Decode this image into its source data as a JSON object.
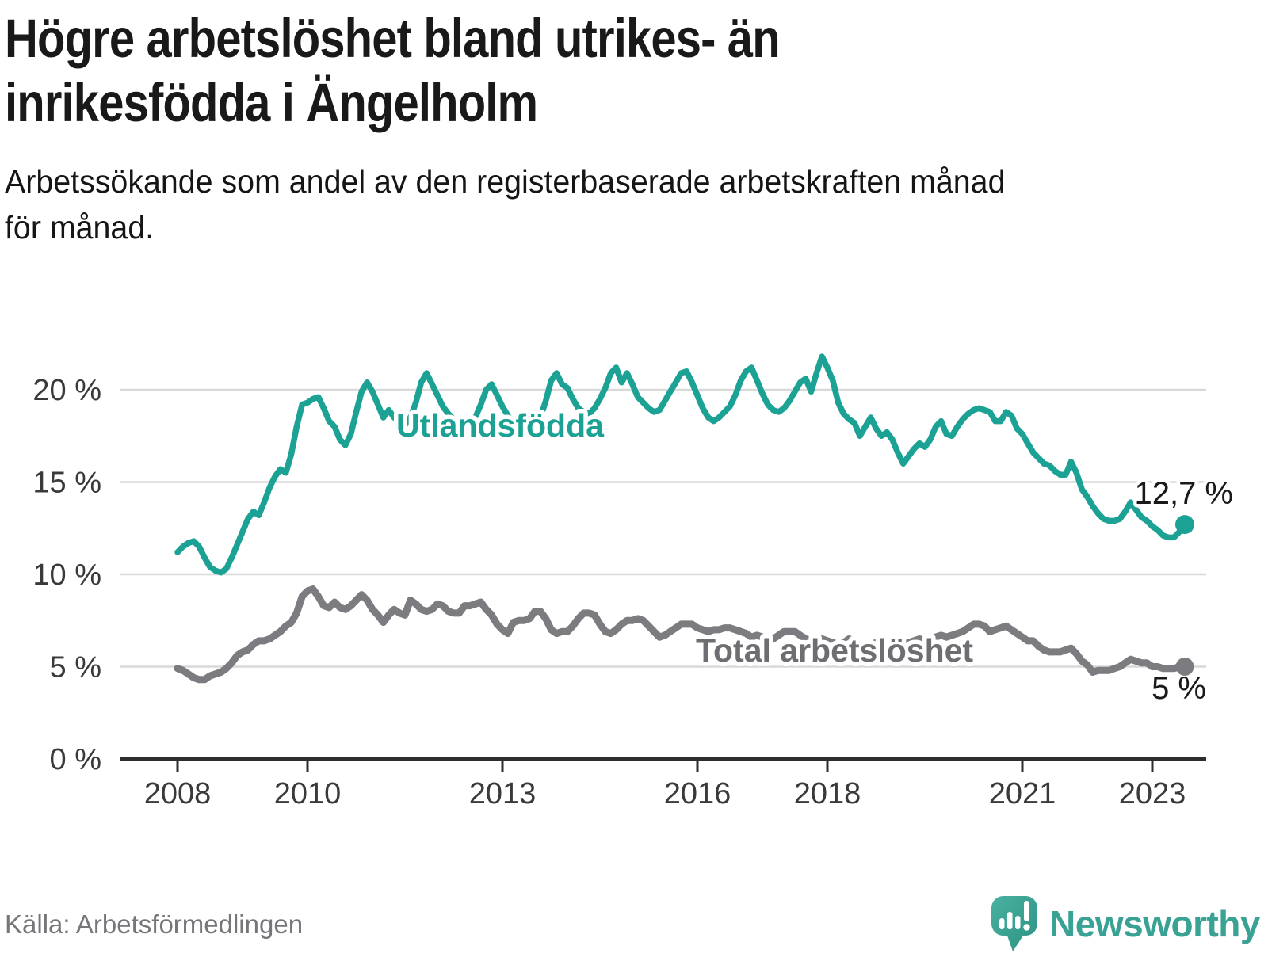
{
  "header": {
    "title_line1": "Högre arbetslöshet bland utrikes- än",
    "title_line2": "inrikesfödda i Ängelholm",
    "subtitle_line1": "Arbetssökande som andel av den registerbaserade arbetskraften månad",
    "subtitle_line2": "för månad."
  },
  "footer": {
    "source": "Källa: Arbetsförmedlingen",
    "brand": "Newsworthy"
  },
  "colors": {
    "accent_teal": "#1ca295",
    "line_gray": "#7b7b80",
    "grid": "#d9d9d9",
    "axis": "#2d2d2d",
    "brand_teal": "#39a294"
  },
  "chart_data": {
    "type": "line",
    "title": "Högre arbetslöshet bland utrikes- än inrikesfödda i Ängelholm",
    "subtitle": "Arbetssökande som andel av den registerbaserade arbetskraften månad för månad.",
    "x_unit": "month",
    "x_start": "2008-01",
    "x_end": "2023-07",
    "ylim": [
      0,
      22.5
    ],
    "grid": true,
    "legend_position": "inline-labels",
    "y_axis": {
      "ticks": [
        {
          "label": "0 %",
          "value": 0
        },
        {
          "label": "5 %",
          "value": 5
        },
        {
          "label": "10 %",
          "value": 10
        },
        {
          "label": "15 %",
          "value": 15
        },
        {
          "label": "20 %",
          "value": 20
        }
      ]
    },
    "x_axis": {
      "ticks": [
        {
          "label": "2008",
          "year": 2008
        },
        {
          "label": "2010",
          "year": 2010
        },
        {
          "label": "2013",
          "year": 2013
        },
        {
          "label": "2016",
          "year": 2016
        },
        {
          "label": "2018",
          "year": 2018
        },
        {
          "label": "2021",
          "year": 2021
        },
        {
          "label": "2023",
          "year": 2023
        }
      ]
    },
    "series": [
      {
        "id": "total",
        "name": "Total arbetslöshet",
        "color": "#7b7b80",
        "label_color": "#6d6d72",
        "last_value_label": "5 %",
        "values": [
          4.9,
          4.8,
          4.6,
          4.4,
          4.3,
          4.3,
          4.5,
          4.6,
          4.7,
          4.9,
          5.2,
          5.6,
          5.8,
          5.9,
          6.2,
          6.4,
          6.4,
          6.5,
          6.7,
          6.9,
          7.2,
          7.4,
          7.9,
          8.8,
          9.1,
          9.2,
          8.8,
          8.3,
          8.2,
          8.5,
          8.2,
          8.1,
          8.3,
          8.6,
          8.9,
          8.6,
          8.1,
          7.8,
          7.4,
          7.8,
          8.1,
          7.9,
          7.8,
          8.6,
          8.4,
          8.1,
          8.0,
          8.1,
          8.4,
          8.3,
          8.0,
          7.9,
          7.9,
          8.3,
          8.3,
          8.4,
          8.5,
          8.1,
          7.8,
          7.3,
          7.0,
          6.8,
          7.4,
          7.5,
          7.5,
          7.6,
          8.0,
          8.0,
          7.6,
          7.0,
          6.8,
          6.9,
          6.9,
          7.2,
          7.6,
          7.9,
          7.9,
          7.8,
          7.3,
          6.9,
          6.8,
          7.0,
          7.3,
          7.5,
          7.5,
          7.6,
          7.5,
          7.2,
          6.9,
          6.6,
          6.7,
          6.9,
          7.1,
          7.3,
          7.3,
          7.3,
          7.1,
          7.0,
          6.9,
          7.0,
          7.0,
          7.1,
          7.1,
          7.0,
          6.9,
          6.8,
          6.6,
          6.7,
          6.6,
          6.5,
          6.5,
          6.7,
          6.9,
          6.9,
          6.9,
          6.7,
          6.5,
          6.4,
          6.4,
          6.5,
          6.4,
          6.3,
          6.2,
          6.3,
          6.5,
          6.4,
          6.2,
          6.1,
          6.2,
          6.3,
          6.2,
          6.3,
          6.4,
          6.3,
          6.2,
          6.3,
          6.4,
          6.5,
          6.4,
          6.5,
          6.6,
          6.7,
          6.6,
          6.7,
          6.8,
          6.9,
          7.1,
          7.3,
          7.3,
          7.2,
          6.9,
          7.0,
          7.1,
          7.2,
          7.0,
          6.8,
          6.6,
          6.4,
          6.4,
          6.1,
          5.9,
          5.8,
          5.8,
          5.8,
          5.9,
          6.0,
          5.7,
          5.3,
          5.1,
          4.7,
          4.8,
          4.8,
          4.8,
          4.9,
          5.0,
          5.2,
          5.4,
          5.3,
          5.2,
          5.2,
          5.0,
          5.0,
          4.9,
          4.9,
          4.9,
          5.0,
          5.0
        ]
      },
      {
        "id": "utlandsfodda",
        "name": "Utlandsfödda",
        "color": "#1ca295",
        "label_color": "#1ca295",
        "last_value_label": "12,7 %",
        "values": [
          11.2,
          11.5,
          11.7,
          11.8,
          11.5,
          10.9,
          10.4,
          10.2,
          10.1,
          10.3,
          10.9,
          11.6,
          12.3,
          13.0,
          13.4,
          13.2,
          13.9,
          14.7,
          15.3,
          15.7,
          15.5,
          16.5,
          18.0,
          19.2,
          19.3,
          19.5,
          19.6,
          19.0,
          18.3,
          18.0,
          17.3,
          17.0,
          17.6,
          18.8,
          19.9,
          20.4,
          19.9,
          19.2,
          18.5,
          18.9,
          18.5,
          18.2,
          18.1,
          18.5,
          19.3,
          20.4,
          20.9,
          20.3,
          19.7,
          19.1,
          18.7,
          18.4,
          18.2,
          18.0,
          18.1,
          18.5,
          19.2,
          20.0,
          20.3,
          19.7,
          19.1,
          18.6,
          18.2,
          18.0,
          17.8,
          17.9,
          18.1,
          18.5,
          19.4,
          20.5,
          20.9,
          20.3,
          20.1,
          19.5,
          19.0,
          18.8,
          18.7,
          19.0,
          19.5,
          20.1,
          20.9,
          21.2,
          20.4,
          20.9,
          20.3,
          19.6,
          19.3,
          19.0,
          18.8,
          18.9,
          19.4,
          19.9,
          20.4,
          20.9,
          21.0,
          20.4,
          19.7,
          19.0,
          18.5,
          18.3,
          18.5,
          18.8,
          19.1,
          19.7,
          20.5,
          21.0,
          21.2,
          20.5,
          19.8,
          19.2,
          18.9,
          18.8,
          19.0,
          19.4,
          19.9,
          20.4,
          20.6,
          19.9,
          20.9,
          21.8,
          21.2,
          20.5,
          19.3,
          18.7,
          18.4,
          18.2,
          17.5,
          18.0,
          18.5,
          17.9,
          17.5,
          17.7,
          17.3,
          16.6,
          16.0,
          16.4,
          16.8,
          17.1,
          16.9,
          17.3,
          18.0,
          18.3,
          17.6,
          17.5,
          18.0,
          18.4,
          18.7,
          18.9,
          19.0,
          18.9,
          18.8,
          18.3,
          18.3,
          18.8,
          18.6,
          17.9,
          17.6,
          17.1,
          16.6,
          16.3,
          16.0,
          15.9,
          15.6,
          15.4,
          15.4,
          16.1,
          15.5,
          14.6,
          14.2,
          13.7,
          13.3,
          13.0,
          12.9,
          12.9,
          13.0,
          13.4,
          13.9,
          13.5,
          13.1,
          12.9,
          12.6,
          12.4,
          12.1,
          12.0,
          12.0,
          12.3,
          12.7
        ]
      }
    ]
  }
}
